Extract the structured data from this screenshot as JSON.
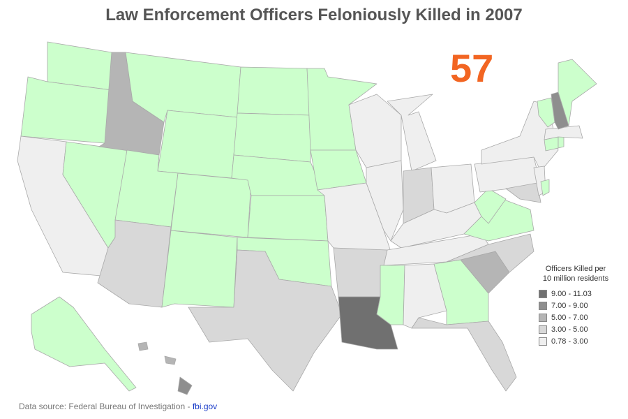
{
  "title": "Law Enforcement Officers Feloniously Killed in 2007",
  "total_killed": "57",
  "legend": {
    "title_line1": "Officers Killed per",
    "title_line2": "10 million residents",
    "bins": [
      {
        "label": "9.00 - 11.03",
        "color": "#707070"
      },
      {
        "label": "7.00 - 9.00",
        "color": "#8e8e8e"
      },
      {
        "label": "5.00 - 7.00",
        "color": "#b5b5b5"
      },
      {
        "label": "3.00 - 5.00",
        "color": "#d8d8d8"
      },
      {
        "label": "0.78 - 3.00",
        "color": "#efefef"
      }
    ]
  },
  "zero_color": "#ccffcc",
  "source": {
    "text": "Data source: Federal Bureau of Investigation - ",
    "link": "fbi.gov"
  }
}
